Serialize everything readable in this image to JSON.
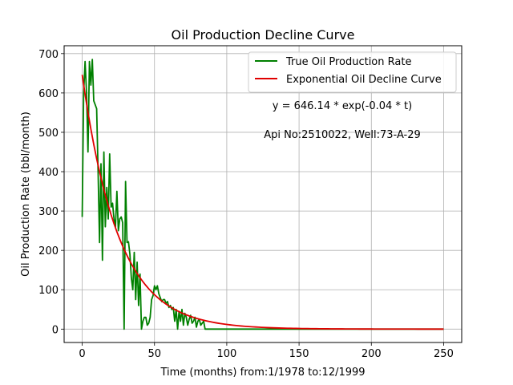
{
  "chart_data": {
    "type": "line",
    "title": "Oil Production Decline Curve",
    "xlabel": "Time (months) from:1/1978 to:12/1999",
    "ylabel": "Oil Production Rate (bbl/month)",
    "xlim": [
      -12.5,
      262.5
    ],
    "ylim": [
      -34,
      720
    ],
    "xticks": [
      0,
      50,
      100,
      150,
      200,
      250
    ],
    "yticks": [
      0,
      100,
      200,
      300,
      400,
      500,
      600,
      700
    ],
    "grid": true,
    "legend_position": "top-right",
    "annotations": {
      "equation": "y = 646.14 * exp(-0.04 * t)",
      "well": "Api No:2510022, Well:73-A-29"
    },
    "series": [
      {
        "name": "True Oil Production Rate",
        "color": "#008000",
        "x": [
          0,
          1,
          2,
          3,
          4,
          5,
          6,
          7,
          8,
          9,
          10,
          11,
          12,
          13,
          14,
          15,
          16,
          17,
          18,
          19,
          20,
          21,
          22,
          23,
          24,
          25,
          26,
          27,
          28,
          29,
          30,
          31,
          32,
          33,
          34,
          35,
          36,
          37,
          38,
          39,
          40,
          41,
          42,
          43,
          44,
          45,
          46,
          47,
          48,
          49,
          50,
          51,
          52,
          53,
          54,
          55,
          56,
          57,
          58,
          59,
          60,
          61,
          62,
          63,
          64,
          65,
          66,
          67,
          68,
          69,
          70,
          71,
          72,
          73,
          74,
          75,
          76,
          77,
          78,
          79,
          80,
          81,
          82,
          83,
          84,
          85,
          86,
          87,
          88,
          89,
          90,
          91,
          92,
          93,
          94,
          95,
          96,
          97,
          98,
          99,
          100,
          101,
          120,
          150,
          200,
          250
        ],
        "values": [
          285,
          600,
          680,
          600,
          450,
          680,
          620,
          685,
          580,
          570,
          560,
          400,
          220,
          420,
          175,
          450,
          260,
          360,
          280,
          445,
          310,
          320,
          280,
          260,
          350,
          250,
          280,
          285,
          270,
          0,
          375,
          220,
          222,
          190,
          130,
          100,
          195,
          75,
          170,
          60,
          140,
          0,
          20,
          30,
          30,
          10,
          15,
          30,
          75,
          85,
          110,
          100,
          110,
          90,
          80,
          70,
          75,
          75,
          65,
          70,
          55,
          60,
          50,
          55,
          20,
          50,
          0,
          45,
          20,
          50,
          10,
          40,
          30,
          10,
          25,
          35,
          15,
          20,
          30,
          5,
          20,
          25,
          10,
          15,
          20,
          0,
          0,
          0,
          0,
          0,
          0,
          0,
          0,
          0,
          0,
          0,
          0,
          0,
          0,
          0,
          0,
          0,
          0,
          0,
          0,
          0
        ]
      },
      {
        "name": "Exponential Oil Decline Curve",
        "color": "#e00000",
        "a": 646.14,
        "b": -0.04,
        "x_range": [
          0,
          250
        ]
      }
    ]
  }
}
